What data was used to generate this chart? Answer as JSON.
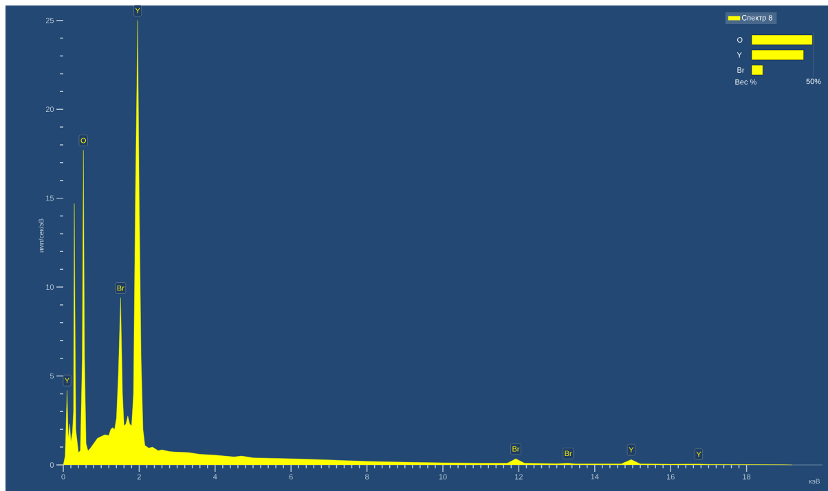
{
  "chart_data": [
    {
      "type": "area",
      "ylabel": "имп/сек/эВ",
      "xlabel": "кэВ",
      "legend": "top right",
      "xlim": [
        0,
        20
      ],
      "ylim": [
        0,
        25.8
      ],
      "xticks": [
        0,
        2,
        4,
        6,
        8,
        10,
        12,
        14,
        16,
        18
      ],
      "yticks": [
        0,
        5,
        10,
        15,
        20,
        25
      ],
      "series": [
        {
          "name": "Спектр 8",
          "color": "#ffff00",
          "x": [
            0,
            0.05,
            0.1,
            0.13,
            0.17,
            0.2,
            0.24,
            0.27,
            0.29,
            0.33,
            0.4,
            0.45,
            0.5,
            0.53,
            0.56,
            0.6,
            0.65,
            0.7,
            0.8,
            0.9,
            1.0,
            1.1,
            1.2,
            1.25,
            1.3,
            1.35,
            1.4,
            1.45,
            1.51,
            1.56,
            1.6,
            1.65,
            1.7,
            1.75,
            1.8,
            1.85,
            1.9,
            1.96,
            2.0,
            2.05,
            2.1,
            2.15,
            2.25,
            2.35,
            2.5,
            2.6,
            2.8,
            3.0,
            3.3,
            3.6,
            4.0,
            4.5,
            4.7,
            5.0,
            6.0,
            7.0,
            8.0,
            9.0,
            10.0,
            11.0,
            11.7,
            11.92,
            12.15,
            13.0,
            13.3,
            13.5,
            14.7,
            14.96,
            15.2,
            16.0,
            16.74,
            17.0,
            18.0,
            19.0,
            19.2
          ],
          "values": [
            0,
            0.5,
            4.2,
            1.5,
            2.3,
            1.3,
            1.8,
            3,
            14.7,
            2,
            0.7,
            0.8,
            6,
            17.7,
            6,
            1.2,
            0.8,
            0.9,
            1.2,
            1.5,
            1.6,
            1.7,
            1.65,
            2,
            2.1,
            2,
            2.6,
            5,
            9.4,
            4,
            2.2,
            2.3,
            2.75,
            2.3,
            2.2,
            4,
            15,
            25,
            15,
            6,
            2,
            1.1,
            0.95,
            1,
            0.8,
            0.85,
            0.75,
            0.72,
            0.7,
            0.6,
            0.55,
            0.45,
            0.5,
            0.4,
            0.35,
            0.28,
            0.2,
            0.15,
            0.12,
            0.1,
            0.1,
            0.35,
            0.1,
            0.07,
            0.1,
            0.06,
            0.06,
            0.3,
            0.06,
            0.04,
            0.05,
            0.03,
            0.02,
            0.01,
            0
          ]
        }
      ],
      "annotations": [
        {
          "text": "Y",
          "x": 0.1,
          "y": 4.2
        },
        {
          "text": "O",
          "x": 0.53,
          "y": 17.7
        },
        {
          "text": "Br",
          "x": 1.51,
          "y": 9.4
        },
        {
          "text": "Y",
          "x": 1.96,
          "y": 25
        },
        {
          "text": "Br",
          "x": 11.92,
          "y": 0.35
        },
        {
          "text": "Br",
          "x": 13.3,
          "y": 0.1
        },
        {
          "text": "Y",
          "x": 14.96,
          "y": 0.3
        },
        {
          "text": "Y",
          "x": 16.74,
          "y": 0.05
        }
      ]
    },
    {
      "type": "bar",
      "orientation": "horizontal",
      "categories": [
        "O",
        "Y",
        "Br"
      ],
      "values": [
        49,
        42,
        9
      ],
      "color": "#ffff00",
      "xlim": [
        0,
        50
      ],
      "xticks": [
        {
          "value": 50,
          "label": "50%"
        }
      ],
      "xlabel": "Вес %"
    }
  ]
}
